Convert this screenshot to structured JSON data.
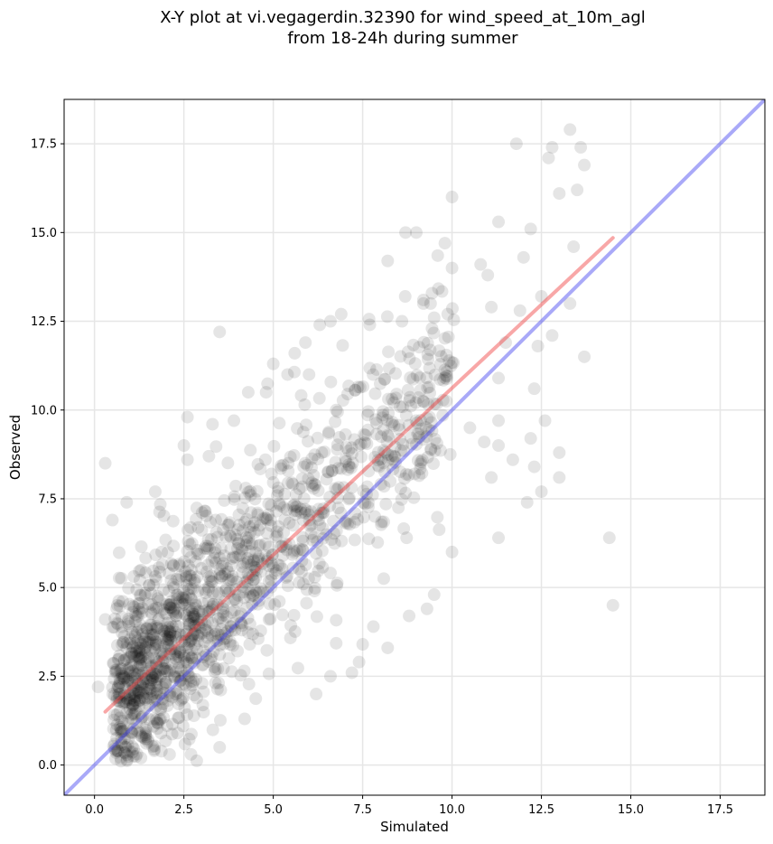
{
  "chart_data": {
    "type": "scatter",
    "title": "X-Y plot at vi.vegagerdin.32390 for wind_speed_at_10m_agl",
    "subtitle": "from 18-24h during summer",
    "xlabel": "Simulated",
    "ylabel": "Observed",
    "xlim": [
      -0.85,
      18.75
    ],
    "ylim": [
      -0.85,
      18.75
    ],
    "xticks": [
      "0.0",
      "2.5",
      "5.0",
      "7.5",
      "10.0",
      "12.5",
      "15.0",
      "17.5"
    ],
    "yticks": [
      "0.0",
      "2.5",
      "5.0",
      "7.5",
      "10.0",
      "12.5",
      "15.0",
      "17.5"
    ],
    "grid": true,
    "point_color": "#000000",
    "point_alpha": 0.1,
    "regression_line": {
      "color": "#f03c3c",
      "x": [
        0.3,
        14.5
      ],
      "y": [
        1.5,
        14.85
      ]
    },
    "identity_line": {
      "color": "#4040f0",
      "x": [
        -0.85,
        18.75
      ],
      "y": [
        -0.85,
        18.75
      ]
    },
    "points": [
      [
        0.3,
        8.5
      ],
      [
        3.5,
        12.2
      ],
      [
        14.5,
        4.5
      ],
      [
        14.4,
        6.4
      ],
      [
        11.8,
        17.5
      ],
      [
        13.3,
        17.9
      ],
      [
        12.8,
        17.4
      ],
      [
        13.6,
        17.4
      ],
      [
        12.7,
        17.1
      ],
      [
        13.7,
        16.9
      ],
      [
        13.0,
        16.1
      ],
      [
        13.5,
        16.2
      ],
      [
        10.0,
        16.0
      ],
      [
        11.3,
        15.3
      ],
      [
        12.2,
        15.1
      ],
      [
        8.7,
        15.0
      ],
      [
        9.0,
        15.0
      ],
      [
        9.8,
        14.7
      ],
      [
        13.4,
        14.6
      ],
      [
        12.0,
        14.3
      ],
      [
        8.2,
        14.2
      ],
      [
        10.0,
        14.0
      ],
      [
        10.8,
        14.1
      ],
      [
        11.0,
        13.8
      ],
      [
        12.5,
        13.2
      ],
      [
        13.3,
        13.0
      ],
      [
        13.7,
        11.5
      ],
      [
        12.8,
        12.1
      ],
      [
        11.5,
        11.9
      ],
      [
        11.1,
        12.9
      ],
      [
        6.9,
        12.7
      ],
      [
        6.6,
        12.5
      ],
      [
        5.9,
        11.9
      ],
      [
        7.7,
        12.4
      ],
      [
        8.6,
        12.5
      ],
      [
        9.2,
        13.0
      ],
      [
        9.5,
        12.6
      ],
      [
        11.9,
        12.8
      ],
      [
        12.4,
        11.8
      ],
      [
        11.3,
        10.9
      ],
      [
        12.3,
        10.6
      ],
      [
        12.6,
        9.7
      ],
      [
        11.3,
        9.7
      ],
      [
        12.2,
        9.2
      ],
      [
        10.5,
        9.5
      ],
      [
        10.9,
        9.1
      ],
      [
        11.3,
        9.0
      ],
      [
        11.1,
        8.1
      ],
      [
        11.7,
        8.6
      ],
      [
        12.3,
        8.4
      ],
      [
        12.5,
        7.7
      ],
      [
        12.1,
        7.4
      ],
      [
        13.0,
        8.8
      ],
      [
        13.0,
        8.1
      ],
      [
        11.3,
        6.4
      ],
      [
        10.0,
        6.0
      ],
      [
        9.5,
        4.8
      ],
      [
        9.3,
        4.4
      ],
      [
        8.8,
        4.2
      ],
      [
        8.2,
        3.3
      ],
      [
        7.8,
        3.9
      ],
      [
        7.5,
        3.4
      ],
      [
        7.2,
        2.6
      ],
      [
        6.6,
        2.5
      ],
      [
        6.2,
        2.0
      ],
      [
        7.4,
        2.9
      ],
      [
        4.2,
        1.3
      ],
      [
        3.5,
        0.5
      ],
      [
        2.7,
        0.3
      ],
      [
        2.1,
        0.3
      ],
      [
        1.3,
        0.2
      ],
      [
        0.6,
        0.4
      ],
      [
        3.9,
        9.7
      ],
      [
        2.6,
        9.8
      ],
      [
        2.5,
        9.0
      ],
      [
        3.3,
        9.6
      ],
      [
        2.6,
        8.6
      ],
      [
        3.2,
        8.7
      ],
      [
        1.7,
        7.7
      ],
      [
        0.9,
        7.4
      ],
      [
        0.5,
        6.9
      ],
      [
        0.3,
        4.1
      ],
      [
        0.1,
        2.2
      ],
      [
        4.3,
        10.5
      ],
      [
        4.8,
        10.5
      ],
      [
        5.4,
        11.0
      ],
      [
        5.0,
        11.3
      ],
      [
        5.6,
        11.6
      ],
      [
        6.0,
        11.0
      ],
      [
        6.3,
        12.4
      ]
    ],
    "cluster_seed": 32390,
    "cluster_count": 1400
  }
}
